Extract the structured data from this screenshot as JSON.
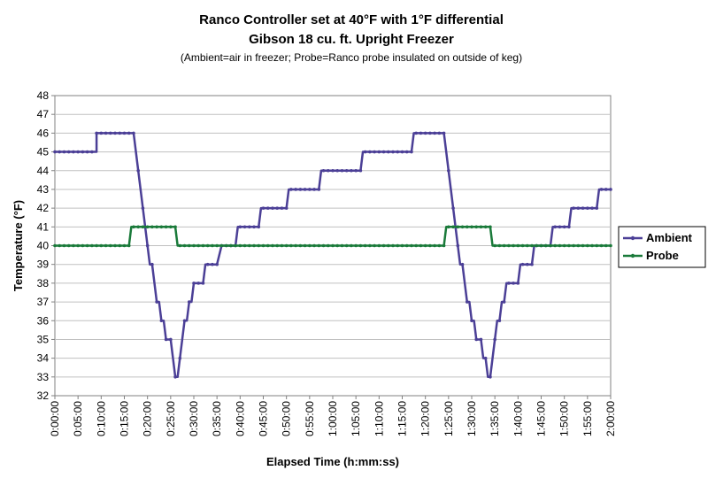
{
  "chart_data": {
    "type": "line",
    "title": "Ranco Controller set at 40°F with 1°F differential",
    "subtitle": "Gibson 18 cu. ft. Upright Freezer",
    "note": "(Ambient=air in freezer; Probe=Ranco probe insulated on outside of keg)",
    "xlabel": "Elapsed Time (h:mm:ss)",
    "ylabel": "Temperature (°F)",
    "ylim": [
      32,
      48
    ],
    "xlim": [
      0,
      120
    ],
    "x_unit": "minutes",
    "y_ticks": [
      "32",
      "33",
      "34",
      "35",
      "36",
      "37",
      "38",
      "39",
      "40",
      "41",
      "42",
      "43",
      "44",
      "45",
      "46",
      "47",
      "48"
    ],
    "x_ticks": [
      "0:00:00",
      "0:05:00",
      "0:10:00",
      "0:15:00",
      "0:20:00",
      "0:25:00",
      "0:30:00",
      "0:35:00",
      "0:40:00",
      "0:45:00",
      "0:50:00",
      "0:55:00",
      "1:00:00",
      "1:05:00",
      "1:10:00",
      "1:15:00",
      "1:20:00",
      "1:25:00",
      "1:30:00",
      "1:35:00",
      "1:40:00",
      "1:45:00",
      "1:50:00",
      "1:55:00",
      "2:00:00"
    ],
    "grid": "horizontal",
    "legend_position": "right",
    "series": [
      {
        "name": "Ambient",
        "color": "#4b3f96",
        "points": [
          [
            0,
            45
          ],
          [
            9,
            45
          ],
          [
            9,
            46
          ],
          [
            17,
            46
          ],
          [
            17.5,
            45
          ],
          [
            18,
            44
          ],
          [
            18.5,
            43
          ],
          [
            19,
            42
          ],
          [
            19.5,
            41
          ],
          [
            20,
            40
          ],
          [
            20.5,
            39
          ],
          [
            21,
            39
          ],
          [
            21.5,
            38
          ],
          [
            22,
            37
          ],
          [
            22.5,
            37
          ],
          [
            23,
            36
          ],
          [
            23.5,
            36
          ],
          [
            24,
            35
          ],
          [
            25,
            35
          ],
          [
            25.5,
            34
          ],
          [
            26,
            33
          ],
          [
            26.5,
            33
          ],
          [
            27,
            34
          ],
          [
            27.5,
            35
          ],
          [
            28,
            36
          ],
          [
            28.5,
            36
          ],
          [
            29,
            37
          ],
          [
            29.5,
            37
          ],
          [
            30,
            38
          ],
          [
            32,
            38
          ],
          [
            32.5,
            39
          ],
          [
            35,
            39
          ],
          [
            36,
            40
          ],
          [
            39,
            40
          ],
          [
            39.5,
            41
          ],
          [
            44,
            41
          ],
          [
            44.5,
            42
          ],
          [
            50,
            42
          ],
          [
            50.5,
            43
          ],
          [
            57,
            43
          ],
          [
            57.5,
            44
          ],
          [
            66,
            44
          ],
          [
            66.5,
            45
          ],
          [
            77,
            45
          ],
          [
            77.5,
            46
          ],
          [
            84,
            46
          ],
          [
            84.5,
            45
          ],
          [
            85,
            44
          ],
          [
            85.5,
            43
          ],
          [
            86,
            42
          ],
          [
            86.5,
            41
          ],
          [
            87,
            40
          ],
          [
            87.5,
            39
          ],
          [
            88,
            39
          ],
          [
            88.5,
            38
          ],
          [
            89,
            37
          ],
          [
            89.5,
            37
          ],
          [
            90,
            36
          ],
          [
            90.5,
            36
          ],
          [
            91,
            35
          ],
          [
            92,
            35
          ],
          [
            92.5,
            34
          ],
          [
            93,
            34
          ],
          [
            93.5,
            33
          ],
          [
            94,
            33
          ],
          [
            94.5,
            34
          ],
          [
            95,
            35
          ],
          [
            95.5,
            36
          ],
          [
            96,
            36
          ],
          [
            96.5,
            37
          ],
          [
            97,
            37
          ],
          [
            97.5,
            38
          ],
          [
            100,
            38
          ],
          [
            100.5,
            39
          ],
          [
            103,
            39
          ],
          [
            103.5,
            40
          ],
          [
            107,
            40
          ],
          [
            107.5,
            41
          ],
          [
            111,
            41
          ],
          [
            111.5,
            42
          ],
          [
            117,
            42
          ],
          [
            117.5,
            43
          ],
          [
            120,
            43
          ]
        ]
      },
      {
        "name": "Probe",
        "color": "#1a7a3a",
        "points": [
          [
            0,
            40
          ],
          [
            16,
            40
          ],
          [
            16.5,
            41
          ],
          [
            26,
            41
          ],
          [
            26.5,
            40
          ],
          [
            84,
            40
          ],
          [
            84.5,
            41
          ],
          [
            94,
            41
          ],
          [
            94.5,
            40
          ],
          [
            120,
            40
          ]
        ]
      }
    ]
  }
}
